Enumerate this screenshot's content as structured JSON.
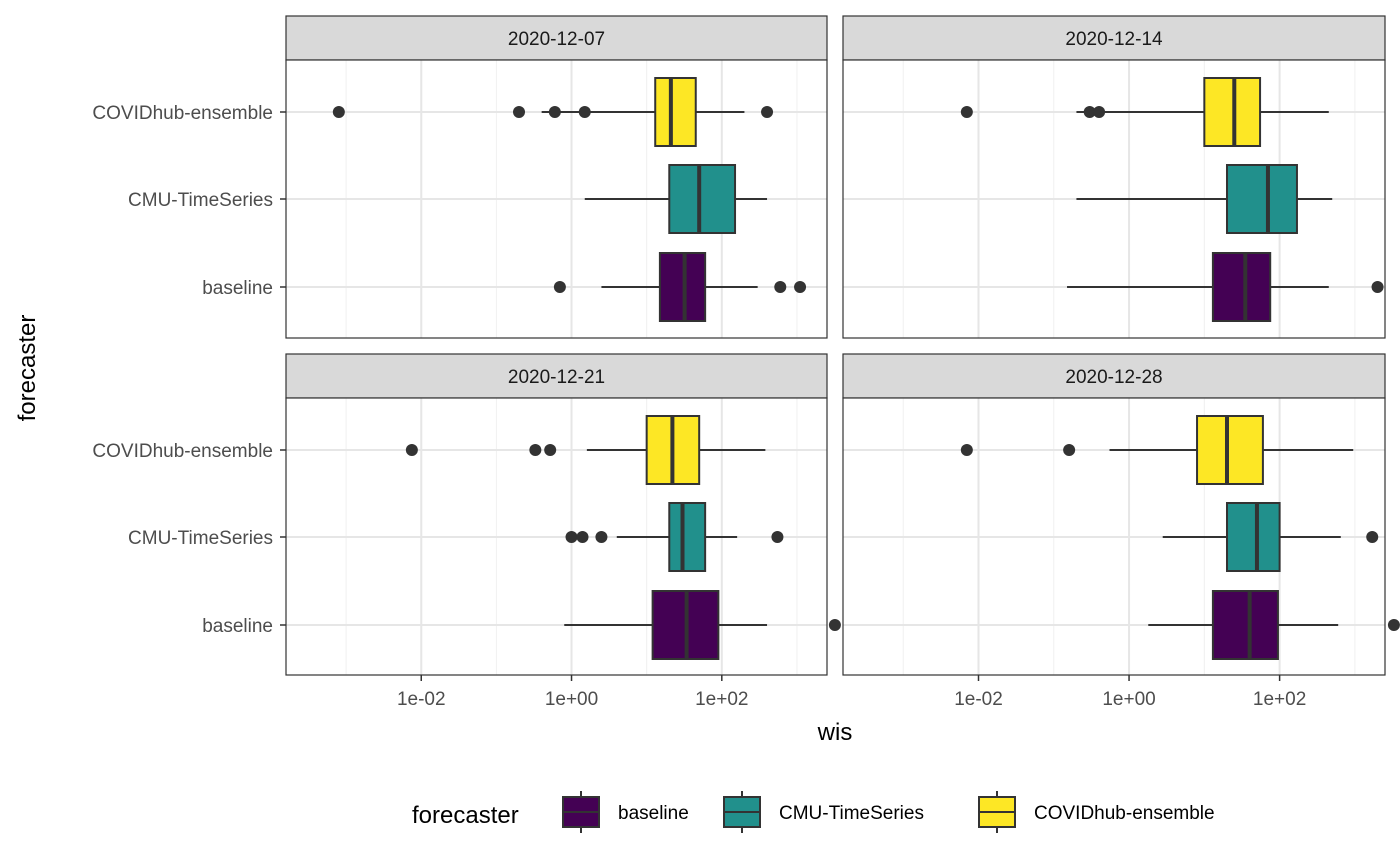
{
  "chart_data": {
    "type": "boxplot",
    "orientation": "horizontal",
    "x_scale": "log10",
    "xlim_log10": [
      -3.8,
      3.4
    ],
    "xlabel": "wis",
    "ylabel": "forecaster",
    "x_ticks": [
      {
        "value": 0.01,
        "label": "1e-02"
      },
      {
        "value": 1,
        "label": "1e+00"
      },
      {
        "value": 100,
        "label": "1e+02"
      }
    ],
    "categories": [
      "COVIDhub-ensemble",
      "CMU-TimeSeries",
      "baseline"
    ],
    "colors": {
      "baseline": "#440154",
      "CMU-TimeSeries": "#21908C",
      "COVIDhub-ensemble": "#FDE725"
    },
    "legend": {
      "title": "forecaster",
      "position": "bottom",
      "items": [
        "baseline",
        "CMU-TimeSeries",
        "COVIDhub-ensemble"
      ]
    },
    "panels": [
      {
        "title": "2020-12-07",
        "boxes": [
          {
            "forecaster": "COVIDhub-ensemble",
            "whisker_low": 0.4,
            "q1": 13,
            "median": 21,
            "q3": 45,
            "whisker_high": 200,
            "outliers": [
              0.0008,
              0.2,
              0.6,
              1.5,
              400
            ]
          },
          {
            "forecaster": "CMU-TimeSeries",
            "whisker_low": 1.5,
            "q1": 20,
            "median": 50,
            "q3": 150,
            "whisker_high": 400,
            "outliers": []
          },
          {
            "forecaster": "baseline",
            "whisker_low": 2.5,
            "q1": 15,
            "median": 32,
            "q3": 60,
            "whisker_high": 300,
            "outliers": [
              0.7,
              600,
              1100
            ]
          }
        ]
      },
      {
        "title": "2020-12-14",
        "boxes": [
          {
            "forecaster": "COVIDhub-ensemble",
            "whisker_low": 0.2,
            "q1": 10,
            "median": 25,
            "q3": 55,
            "whisker_high": 450,
            "outliers": [
              0.007,
              0.3,
              0.4
            ]
          },
          {
            "forecaster": "CMU-TimeSeries",
            "whisker_low": 0.2,
            "q1": 20,
            "median": 70,
            "q3": 170,
            "whisker_high": 500,
            "outliers": []
          },
          {
            "forecaster": "baseline",
            "whisker_low": 0.15,
            "q1": 13,
            "median": 35,
            "q3": 75,
            "whisker_high": 450,
            "outliers": [
              2000
            ]
          }
        ]
      },
      {
        "title": "2020-12-21",
        "boxes": [
          {
            "forecaster": "COVIDhub-ensemble",
            "whisker_low": 1.6,
            "q1": 10,
            "median": 22,
            "q3": 50,
            "whisker_high": 380,
            "outliers": [
              0.0075,
              0.33,
              0.52
            ]
          },
          {
            "forecaster": "CMU-TimeSeries",
            "whisker_low": 4,
            "q1": 20,
            "median": 30,
            "q3": 60,
            "whisker_high": 160,
            "outliers": [
              1.0,
              1.4,
              2.5,
              550
            ]
          },
          {
            "forecaster": "baseline",
            "whisker_low": 0.8,
            "q1": 12,
            "median": 34,
            "q3": 90,
            "whisker_high": 400,
            "outliers": [
              3200
            ]
          }
        ]
      },
      {
        "title": "2020-12-28",
        "boxes": [
          {
            "forecaster": "COVIDhub-ensemble",
            "whisker_low": 0.55,
            "q1": 8,
            "median": 20,
            "q3": 60,
            "whisker_high": 950,
            "outliers": [
              0.007,
              0.16
            ]
          },
          {
            "forecaster": "CMU-TimeSeries",
            "whisker_low": 2.8,
            "q1": 20,
            "median": 50,
            "q3": 100,
            "whisker_high": 650,
            "outliers": [
              1700
            ]
          },
          {
            "forecaster": "baseline",
            "whisker_low": 1.8,
            "q1": 13,
            "median": 40,
            "q3": 95,
            "whisker_high": 600,
            "outliers": [
              3300
            ]
          }
        ]
      }
    ]
  }
}
